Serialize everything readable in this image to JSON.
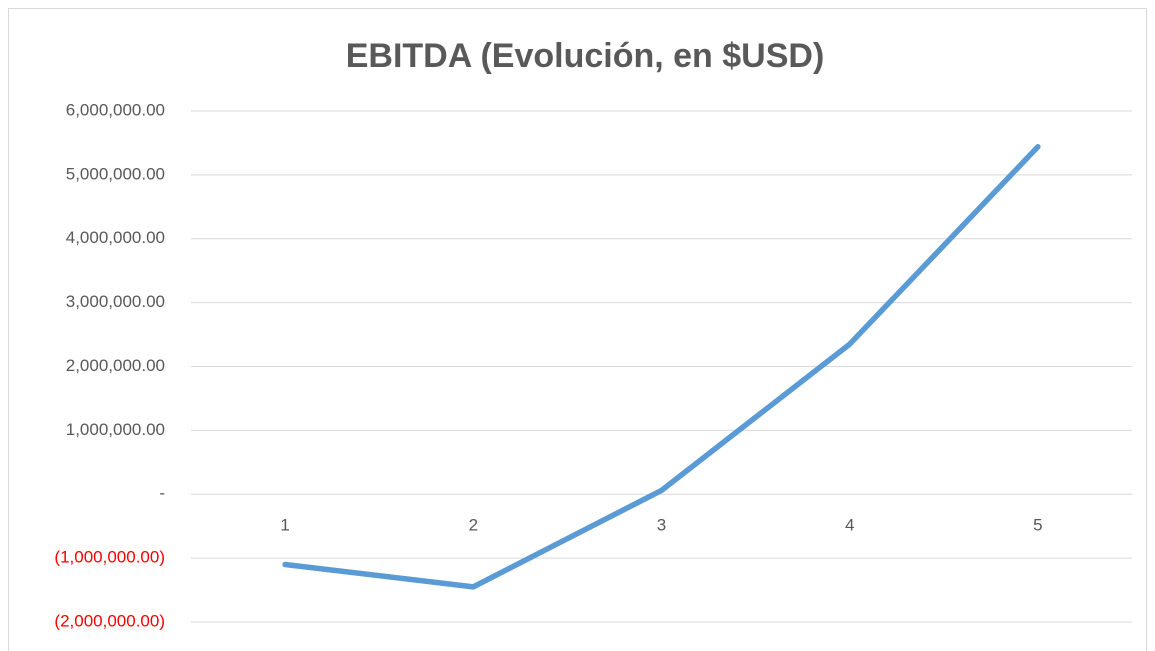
{
  "chart_data": {
    "type": "line",
    "title": "EBITDA (Evolución, en $USD)",
    "categories": [
      "1",
      "2",
      "3",
      "4",
      "5"
    ],
    "series": [
      {
        "name": "EBITDA",
        "color": "#5b9bd5",
        "values": [
          -1100000,
          -1450000,
          60000,
          2350000,
          5440000
        ]
      }
    ],
    "ylim": [
      -2000000,
      6000000
    ],
    "yticks": [
      {
        "value": -2000000,
        "label": "(2,000,000.00)"
      },
      {
        "value": -1000000,
        "label": "(1,000,000.00)"
      },
      {
        "value": 0,
        "label": "-"
      },
      {
        "value": 1000000,
        "label": "1,000,000.00"
      },
      {
        "value": 2000000,
        "label": "2,000,000.00"
      },
      {
        "value": 3000000,
        "label": "3,000,000.00"
      },
      {
        "value": 4000000,
        "label": "4,000,000.00"
      },
      {
        "value": 5000000,
        "label": "5,000,000.00"
      },
      {
        "value": 6000000,
        "label": "6,000,000.00"
      }
    ],
    "grid": true,
    "negative_label_color": "#ff0000"
  }
}
